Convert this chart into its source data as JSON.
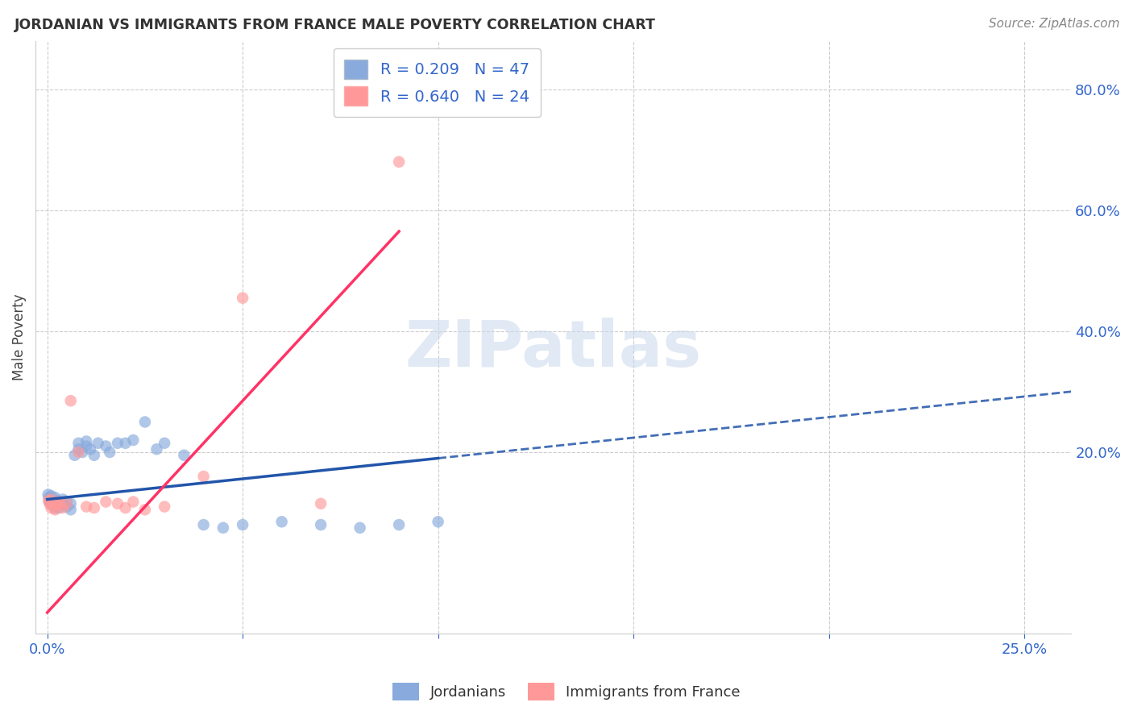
{
  "title": "JORDANIAN VS IMMIGRANTS FROM FRANCE MALE POVERTY CORRELATION CHART",
  "source": "Source: ZipAtlas.com",
  "ylabel_left": "Male Poverty",
  "xlim": [
    -0.003,
    0.262
  ],
  "ylim": [
    -0.1,
    0.88
  ],
  "x_tick_positions": [
    0.0,
    0.05,
    0.1,
    0.15,
    0.2,
    0.25
  ],
  "x_tick_labels": [
    "0.0%",
    "",
    "",
    "",
    "",
    "25.0%"
  ],
  "y_ticks_right": [
    0.2,
    0.4,
    0.6,
    0.8
  ],
  "y_tick_labels_right": [
    "20.0%",
    "40.0%",
    "60.0%",
    "80.0%"
  ],
  "jordanians_R": 0.209,
  "jordanians_N": 47,
  "france_R": 0.64,
  "france_N": 24,
  "blue_scatter_color": "#88AADD",
  "pink_scatter_color": "#FF9999",
  "blue_line_color": "#2255AA",
  "pink_line_color": "#FF3366",
  "jord_x": [
    0.0002,
    0.0004,
    0.0006,
    0.0008,
    0.001,
    0.001,
    0.0012,
    0.0015,
    0.0018,
    0.002,
    0.002,
    0.0022,
    0.0025,
    0.003,
    0.003,
    0.004,
    0.004,
    0.005,
    0.005,
    0.006,
    0.006,
    0.007,
    0.008,
    0.008,
    0.009,
    0.01,
    0.01,
    0.011,
    0.012,
    0.013,
    0.015,
    0.016,
    0.018,
    0.02,
    0.022,
    0.025,
    0.028,
    0.03,
    0.035,
    0.04,
    0.045,
    0.05,
    0.06,
    0.07,
    0.08,
    0.09,
    0.1
  ],
  "jord_y": [
    0.13,
    0.125,
    0.118,
    0.122,
    0.115,
    0.128,
    0.12,
    0.112,
    0.118,
    0.125,
    0.108,
    0.115,
    0.12,
    0.108,
    0.115,
    0.115,
    0.122,
    0.11,
    0.118,
    0.105,
    0.115,
    0.195,
    0.205,
    0.215,
    0.2,
    0.21,
    0.218,
    0.205,
    0.195,
    0.215,
    0.21,
    0.2,
    0.215,
    0.215,
    0.22,
    0.25,
    0.205,
    0.215,
    0.195,
    0.08,
    0.075,
    0.08,
    0.085,
    0.08,
    0.075,
    0.08,
    0.085
  ],
  "france_x": [
    0.0003,
    0.0006,
    0.001,
    0.001,
    0.002,
    0.002,
    0.003,
    0.003,
    0.004,
    0.005,
    0.006,
    0.008,
    0.01,
    0.012,
    0.015,
    0.018,
    0.02,
    0.022,
    0.025,
    0.03,
    0.04,
    0.05,
    0.07,
    0.09
  ],
  "france_y": [
    0.12,
    0.115,
    0.108,
    0.122,
    0.115,
    0.105,
    0.118,
    0.112,
    0.108,
    0.115,
    0.285,
    0.2,
    0.11,
    0.108,
    0.118,
    0.115,
    0.108,
    0.118,
    0.105,
    0.11,
    0.16,
    0.455,
    0.115,
    0.68
  ],
  "jord_line_x0": 0.0,
  "jord_line_y0": 0.122,
  "jord_line_x1": 0.1,
  "jord_line_y1": 0.19,
  "france_line_x0": 0.0,
  "france_line_y0": -0.065,
  "france_line_x1": 0.09,
  "france_line_y1": 0.565,
  "watermark_text": "ZIPatlas",
  "background_color": "#FFFFFF",
  "grid_color": "#CCCCCC"
}
